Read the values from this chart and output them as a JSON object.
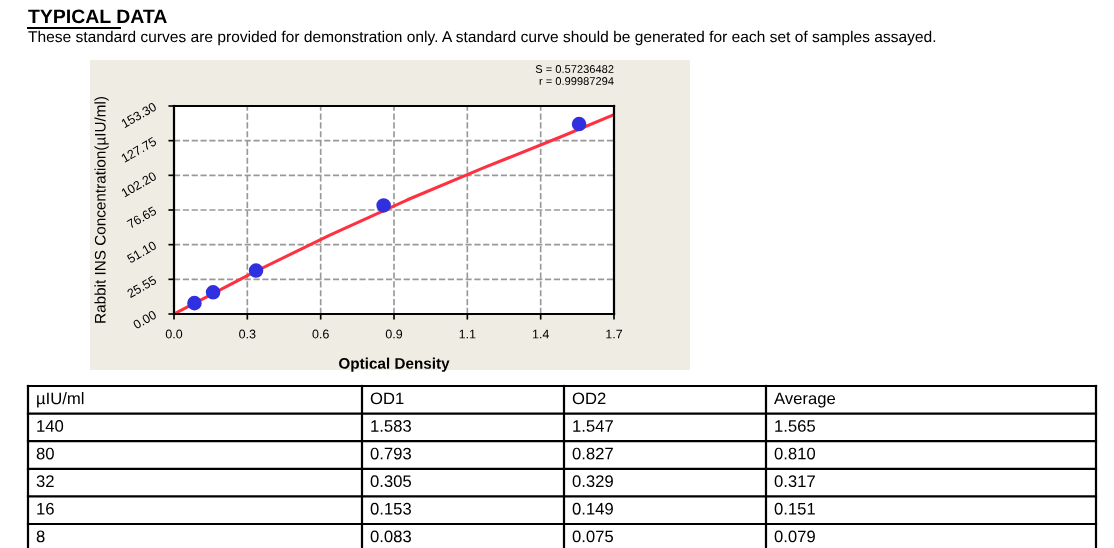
{
  "chart_data": [
    {
      "type": "scatter",
      "title": "TYPICAL DATA",
      "subtitle": "These standard curves are provided for demonstration only. A standard curve should be generated for each set of samples assayed.",
      "xlabel": "Optical Density",
      "ylabel": "Rabbit INS Concentration(µIU/ml)",
      "series": [
        {
          "type": "line",
          "marker": "none",
          "color": "#ff3040",
          "x": [
            0,
            0.3,
            0.6,
            0.9,
            1.2,
            1.5,
            1.7
          ],
          "values": [
            0,
            30,
            58,
            84,
            108,
            131,
            147
          ]
        },
        {
          "type": "scatter",
          "marker": "circle",
          "color": "#3030e0",
          "x": [
            0.079,
            0.151,
            0.317,
            0.81,
            1.565
          ],
          "values": [
            8,
            16,
            32,
            80,
            140
          ]
        }
      ],
      "xlim": [
        0,
        1.7
      ],
      "ylim": [
        0,
        153.3
      ],
      "xticks": [
        {
          "value": 0,
          "label": "0.0"
        },
        {
          "value": 0.2833,
          "label": "0.3"
        },
        {
          "value": 0.5667,
          "label": "0.6"
        },
        {
          "value": 0.85,
          "label": "0.9"
        },
        {
          "value": 1.1333,
          "label": "1.1"
        },
        {
          "value": 1.4167,
          "label": "1.4"
        },
        {
          "value": 1.7,
          "label": "1.7"
        }
      ],
      "yticks": [
        {
          "value": 0,
          "label": "0.00"
        },
        {
          "value": 25.55,
          "label": "25.55"
        },
        {
          "value": 51.1,
          "label": "51.10"
        },
        {
          "value": 76.65,
          "label": "76.65"
        },
        {
          "value": 102.2,
          "label": "102.20"
        },
        {
          "value": 127.75,
          "label": "127.75"
        },
        {
          "value": 153.3,
          "label": "153.30"
        }
      ],
      "annotations": [
        "S = 0.57236482",
        "r = 0.99987294"
      ],
      "grid": true,
      "line_style": "solid"
    },
    {
      "type": "other",
      "annotations": [
        "µIU/ml",
        "OD1",
        "OD2",
        "Average",
        "140",
        "1.583",
        "1.547",
        "1.565",
        "80",
        "0.793",
        "0.827",
        "0.810",
        "32",
        "0.305",
        "0.329",
        "0.317",
        "16",
        "0.153",
        "0.149",
        "0.151",
        "8",
        "0.083",
        "0.075",
        "0.079"
      ]
    }
  ]
}
